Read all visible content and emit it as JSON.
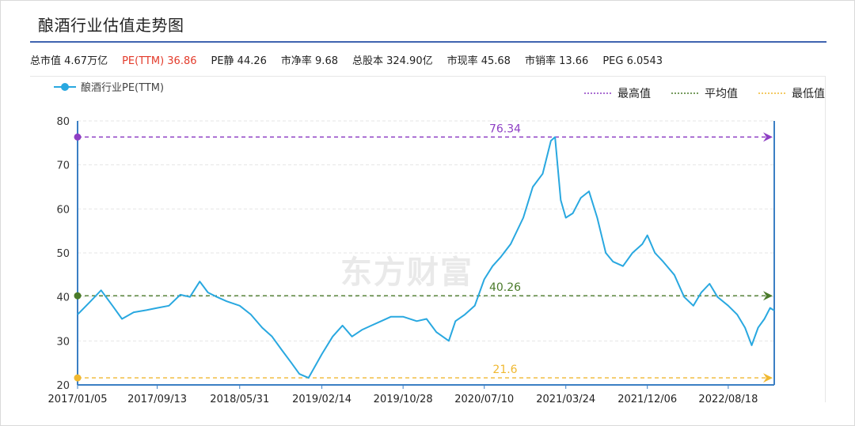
{
  "title": "酿酒行业估值走势图",
  "stats": [
    {
      "text": "总市值 4.67万亿",
      "color": "#222222"
    },
    {
      "text": "PE(TTM) 36.86",
      "color": "#e33b2b"
    },
    {
      "text": "PE静 44.26",
      "color": "#222222"
    },
    {
      "text": "市净率 9.68",
      "color": "#222222"
    },
    {
      "text": "总股本 324.90亿",
      "color": "#222222"
    },
    {
      "text": "市现率 45.68",
      "color": "#222222"
    },
    {
      "text": "市销率 13.66",
      "color": "#222222"
    },
    {
      "text": "PEG 6.0543",
      "color": "#222222"
    }
  ],
  "watermark": "东方财富",
  "chart_data": {
    "type": "line",
    "series": [
      {
        "name": "酿酒行业PE(TTM)",
        "color": "#29a8e0",
        "points": [
          [
            "2017/01/05",
            36
          ],
          [
            "2017/02/15",
            39
          ],
          [
            "2017/03/20",
            41.5
          ],
          [
            "2017/04/25",
            38
          ],
          [
            "2017/05/25",
            35
          ],
          [
            "2017/07/01",
            36.5
          ],
          [
            "2017/08/10",
            37
          ],
          [
            "2017/09/13",
            37.5
          ],
          [
            "2017/10/20",
            38
          ],
          [
            "2017/11/25",
            40.5
          ],
          [
            "2017/12/25",
            40
          ],
          [
            "2018/01/25",
            43.5
          ],
          [
            "2018/02/20",
            41
          ],
          [
            "2018/03/20",
            40
          ],
          [
            "2018/04/20",
            39
          ],
          [
            "2018/05/31",
            38
          ],
          [
            "2018/07/05",
            36
          ],
          [
            "2018/08/10",
            33
          ],
          [
            "2018/09/10",
            31
          ],
          [
            "2018/10/10",
            28
          ],
          [
            "2018/11/10",
            25
          ],
          [
            "2018/12/05",
            22.5
          ],
          [
            "2019/01/03",
            21.6
          ],
          [
            "2019/02/14",
            27
          ],
          [
            "2019/03/20",
            31
          ],
          [
            "2019/04/20",
            33.5
          ],
          [
            "2019/05/20",
            31
          ],
          [
            "2019/06/20",
            32.5
          ],
          [
            "2019/07/20",
            33.5
          ],
          [
            "2019/08/20",
            34.5
          ],
          [
            "2019/09/20",
            35.5
          ],
          [
            "2019/10/28",
            35.5
          ],
          [
            "2019/12/10",
            34.5
          ],
          [
            "2020/01/10",
            35
          ],
          [
            "2020/02/10",
            32
          ],
          [
            "2020/03/20",
            30
          ],
          [
            "2020/04/10",
            34.5
          ],
          [
            "2020/05/10",
            36
          ],
          [
            "2020/06/10",
            38
          ],
          [
            "2020/07/10",
            44
          ],
          [
            "2020/08/05",
            47
          ],
          [
            "2020/08/30",
            49
          ],
          [
            "2020/10/01",
            52
          ],
          [
            "2020/11/10",
            58
          ],
          [
            "2020/12/10",
            65
          ],
          [
            "2021/01/10",
            68
          ],
          [
            "2021/02/05",
            75.5
          ],
          [
            "2021/02/18",
            76.34
          ],
          [
            "2021/03/08",
            62
          ],
          [
            "2021/03/24",
            58
          ],
          [
            "2021/04/15",
            59
          ],
          [
            "2021/05/10",
            62.5
          ],
          [
            "2021/06/05",
            64
          ],
          [
            "2021/07/01",
            58
          ],
          [
            "2021/07/28",
            50
          ],
          [
            "2021/08/20",
            48
          ],
          [
            "2021/09/20",
            47
          ],
          [
            "2021/10/20",
            50
          ],
          [
            "2021/11/20",
            52
          ],
          [
            "2021/12/06",
            54
          ],
          [
            "2021/12/30",
            50
          ],
          [
            "2022/01/25",
            48
          ],
          [
            "2022/03/01",
            45
          ],
          [
            "2022/04/01",
            40
          ],
          [
            "2022/04/30",
            38
          ],
          [
            "2022/05/25",
            41
          ],
          [
            "2022/06/20",
            43
          ],
          [
            "2022/07/15",
            40
          ],
          [
            "2022/08/18",
            38
          ],
          [
            "2022/09/15",
            36
          ],
          [
            "2022/10/10",
            33
          ],
          [
            "2022/10/31",
            29
          ],
          [
            "2022/11/20",
            33
          ],
          [
            "2022/12/10",
            35
          ],
          [
            "2022/12/28",
            37.5
          ],
          [
            "2023/01/10",
            36.9
          ]
        ]
      }
    ],
    "reference_lines": [
      {
        "name": "最高值",
        "value": 76.34,
        "label": "76.34",
        "color": "#8e3fc4"
      },
      {
        "name": "平均值",
        "value": 40.26,
        "label": "40.26",
        "color": "#4a7a2a"
      },
      {
        "name": "最低值",
        "value": 21.6,
        "label": "21.6",
        "color": "#f0b830"
      }
    ],
    "x_ticks": [
      "2017/01/05",
      "2017/09/13",
      "2018/05/31",
      "2019/02/14",
      "2019/10/28",
      "2020/07/10",
      "2021/03/24",
      "2021/12/06",
      "2022/08/18"
    ],
    "x_range": [
      "2017/01/05",
      "2023/01/10"
    ],
    "y_ticks": [
      20,
      30,
      40,
      50,
      60,
      70,
      80
    ],
    "ylim": [
      20,
      80
    ],
    "grid": "horizontal-dashed",
    "legend": "top"
  }
}
